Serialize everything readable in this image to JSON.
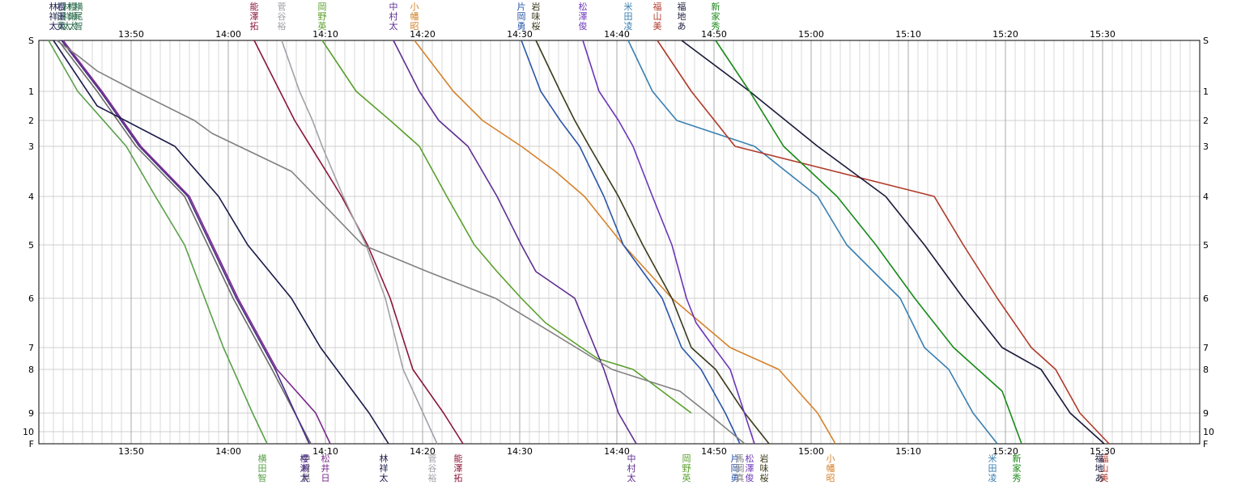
{
  "chart_data": {
    "type": "line",
    "title": "",
    "xlabel": "",
    "ylabel": "",
    "x_unit": "clock time",
    "xlim": [
      "13:40:30",
      "15:40:00"
    ],
    "x_ticks": [
      "13:50",
      "14:00",
      "14:10",
      "14:20",
      "14:30",
      "14:40",
      "14:50",
      "15:00",
      "15:10",
      "15:20",
      "15:30"
    ],
    "y_ticks": [
      "S",
      "1",
      "2",
      "3",
      "4",
      "5",
      "6",
      "7",
      "8",
      "9",
      "10",
      "F"
    ],
    "grid": true,
    "legend": "runner labels along top and bottom edges",
    "series": [
      {
        "name": "能澤拓",
        "color": "#8b1538",
        "label_top": [
          "能",
          "澤",
          "拓"
        ],
        "label_bottom": [
          "能",
          "澤",
          "拓"
        ],
        "x": [
          "14:02:40",
          "14:06:50",
          "14:11:40",
          "14:14:20",
          "14:16:40",
          "14:19:00",
          "14:22:10",
          "14:24:10"
        ],
        "y": [
          "S",
          "2",
          "4",
          "5",
          "6",
          "8",
          "9",
          "F"
        ]
      },
      {
        "name": "菅谷裕",
        "color": "#a0a0a8",
        "label_top": [
          "菅",
          "谷",
          "裕"
        ],
        "label_bottom": [
          "菅",
          "谷",
          "裕"
        ],
        "x": [
          "14:05:30",
          "14:07:20",
          "14:08:40",
          "14:09:40",
          "14:11:50",
          "14:14:10",
          "14:16:10",
          "14:18:00",
          "14:21:30"
        ],
        "y": [
          "S",
          "1",
          "2",
          "3",
          "4",
          "5",
          "6",
          "8",
          "F"
        ]
      },
      {
        "name": "岡野英",
        "color": "#5aa02c",
        "label_top": [
          "岡",
          "野",
          "英"
        ],
        "label_bottom": [
          "岡",
          "野",
          "英"
        ],
        "x": [
          "14:09:40",
          "14:13:10",
          "14:16:40",
          "14:19:40",
          "14:22:30",
          "14:25:20",
          "14:27:40",
          "14:30:10",
          "14:32:40",
          "14:38:00",
          "14:41:40",
          "14:44:40",
          "14:47:40"
        ],
        "y": [
          "S",
          "1",
          "2",
          "3",
          "4",
          "5",
          "5.5",
          "6",
          "6.5",
          "7.5",
          "8",
          "8.5",
          "9"
        ]
      },
      {
        "name": "中村太",
        "color": "#5e2d91",
        "label_top": [
          "中",
          "村",
          "太"
        ],
        "label_bottom": [
          "中",
          "村",
          "太"
        ],
        "x": [
          "14:17:00",
          "14:19:40",
          "14:21:40",
          "14:24:40",
          "14:27:40",
          "14:30:10",
          "14:31:40",
          "14:35:40",
          "14:38:40",
          "14:40:10",
          "14:42:00"
        ],
        "y": [
          "S",
          "1",
          "2",
          "3",
          "4",
          "5",
          "5.5",
          "6",
          "8",
          "9",
          "F"
        ]
      },
      {
        "name": "小幡昭",
        "color": "#d4822c",
        "label_top": [
          "小",
          "幡",
          "昭"
        ],
        "label_bottom": [
          "小",
          "幡",
          "昭"
        ],
        "x": [
          "14:19:10",
          "14:23:10",
          "14:26:10",
          "14:30:10",
          "14:33:40",
          "14:36:40",
          "14:40:40",
          "14:45:40",
          "14:48:40",
          "14:51:40",
          "14:56:40",
          "15:00:40",
          "15:02:30"
        ],
        "y": [
          "S",
          "1",
          "2",
          "3",
          "3.5",
          "4",
          "5",
          "6",
          "6.5",
          "7",
          "8",
          "9",
          "F"
        ]
      },
      {
        "name": "片岡勇",
        "color": "#2a55a8",
        "label_top": [
          "片",
          "岡",
          "勇"
        ],
        "label_bottom": [
          "片",
          "岡",
          "勇"
        ],
        "x": [
          "14:30:10",
          "14:32:10",
          "14:34:10",
          "14:36:10",
          "14:38:40",
          "14:40:40",
          "14:42:40",
          "14:44:40",
          "14:46:40",
          "14:48:40",
          "14:51:10",
          "14:52:40"
        ],
        "y": [
          "S",
          "1",
          "2",
          "3",
          "4",
          "5",
          "5.5",
          "6",
          "7",
          "8",
          "9",
          "F"
        ]
      },
      {
        "name": "岩味桜",
        "color": "#3a3a1a",
        "label_top": [
          "岩",
          "味",
          "桜"
        ],
        "label_bottom": [
          "岩",
          "味",
          "桜"
        ],
        "x": [
          "14:31:40",
          "14:34:10",
          "14:35:40",
          "14:37:10",
          "14:40:10",
          "14:42:40",
          "14:45:40",
          "14:47:40",
          "14:50:10",
          "14:53:10",
          "14:55:40"
        ],
        "y": [
          "S",
          "1",
          "2",
          "3",
          "4",
          "5",
          "6",
          "7",
          "8",
          "9",
          "F"
        ]
      },
      {
        "name": "松澤俊",
        "color": "#6b36b8",
        "label_top": [
          "松",
          "澤",
          "俊"
        ],
        "label_bottom": [
          "松",
          "澤",
          "俊"
        ],
        "x": [
          "14:36:30",
          "14:38:10",
          "14:40:10",
          "14:41:40",
          "14:43:40",
          "14:45:40",
          "14:47:10",
          "14:48:10",
          "14:50:00",
          "14:51:40",
          "14:54:10"
        ],
        "y": [
          "S",
          "1",
          "2",
          "3",
          "4",
          "5",
          "6",
          "6.5",
          "7",
          "8",
          "F"
        ]
      },
      {
        "name": "米田凌",
        "color": "#3a7fb0",
        "label_top": [
          "米",
          "田",
          "凌"
        ],
        "label_bottom": [
          "米",
          "田",
          "凌"
        ],
        "x": [
          "14:41:10",
          "14:43:40",
          "14:46:10",
          "14:50:10",
          "14:54:10",
          "15:00:40",
          "15:03:40",
          "15:09:10",
          "15:11:40",
          "15:14:10",
          "15:16:40",
          "15:19:10"
        ],
        "y": [
          "S",
          "1",
          "2",
          "2.5",
          "3",
          "4",
          "5",
          "6",
          "7",
          "8",
          "9",
          "F"
        ]
      },
      {
        "name": "福山美",
        "color": "#b03a2a",
        "label_top": [
          "福",
          "山",
          "美"
        ],
        "label_bottom": [
          "福",
          "山",
          "美"
        ],
        "x": [
          "14:44:10",
          "14:47:40",
          "14:52:10",
          "15:12:40",
          "15:15:40",
          "15:19:10",
          "15:22:40",
          "15:25:10",
          "15:27:40",
          "15:30:40"
        ],
        "y": [
          "S",
          "1",
          "3",
          "4",
          "5",
          "6",
          "7",
          "8",
          "9",
          "F"
        ]
      },
      {
        "name": "福地あ",
        "color": "#1a1a3a",
        "label_top": [
          "福",
          "地",
          "あ"
        ],
        "label_bottom": [
          "福",
          "地",
          "あ"
        ],
        "x": [
          "14:46:40",
          "14:53:40",
          "15:00:40",
          "15:07:40",
          "15:11:40",
          "15:15:40",
          "15:19:40",
          "15:23:40",
          "15:26:40",
          "15:30:10"
        ],
        "y": [
          "S",
          "1",
          "3",
          "4",
          "5",
          "6",
          "7",
          "8",
          "9",
          "F"
        ]
      },
      {
        "name": "新家秀",
        "color": "#1a8a1a",
        "label_top": [
          "新",
          "家",
          "秀"
        ],
        "label_bottom": [
          "新",
          "家",
          "秀"
        ],
        "x": [
          "14:50:10",
          "14:53:40",
          "14:57:10",
          "15:02:40",
          "15:06:40",
          "15:10:40",
          "15:14:40",
          "15:19:40",
          "15:21:40"
        ],
        "y": [
          "S",
          "1",
          "3",
          "4",
          "5",
          "6",
          "7",
          "8.5",
          "F"
        ]
      },
      {
        "name": "横田智",
        "color": "#5aa04a",
        "label_top": [],
        "label_bottom": [
          "横",
          "田",
          "智"
        ],
        "x": [
          "13:41:30",
          "13:44:30",
          "13:49:30",
          "13:52:30",
          "13:55:30",
          "13:59:30",
          "14:02:30",
          "14:04:00"
        ],
        "y": [
          "S",
          "1",
          "3",
          "4",
          "5",
          "7",
          "9",
          "F"
        ]
      },
      {
        "name": "中村晃",
        "color": "#6a6a6a",
        "label_top": [],
        "label_bottom": [
          "中",
          "村",
          "晃"
        ],
        "x": [
          "13:42:30",
          "13:46:30",
          "13:50:30",
          "13:55:30",
          "14:00:30",
          "14:04:30",
          "14:08:30"
        ],
        "y": [
          "S",
          "1",
          "3",
          "4",
          "6",
          "8",
          "F"
        ]
      },
      {
        "name": "櫻瀬太",
        "color": "#4a2a8a",
        "label_top": [
          "櫻",
          "瀬",
          "太"
        ],
        "label_bottom": [
          "櫻",
          "瀬",
          "太"
        ],
        "x": [
          "13:42:50",
          "13:46:50",
          "13:50:50",
          "13:55:50",
          "14:00:50",
          "14:04:50",
          "14:08:20"
        ],
        "y": [
          "S",
          "1",
          "3",
          "4",
          "6",
          "8",
          "F"
        ]
      },
      {
        "name": "松井日",
        "color": "#7a2a8a",
        "label_top": [],
        "label_bottom": [
          "松",
          "井",
          "日"
        ],
        "x": [
          "13:43:00",
          "13:47:00",
          "13:51:00",
          "13:56:00",
          "14:01:00",
          "14:05:00",
          "14:09:00",
          "14:10:30"
        ],
        "y": [
          "S",
          "1",
          "3",
          "4",
          "6",
          "8",
          "9",
          "F"
        ]
      },
      {
        "name": "林祥太",
        "color": "#1a1a4a",
        "label_top": [
          "林",
          "祥",
          "太"
        ],
        "label_bottom": [
          "林",
          "祥",
          "太"
        ],
        "x": [
          "13:42:00",
          "13:46:30",
          "13:54:30",
          "13:59:00",
          "14:02:00",
          "14:06:30",
          "14:09:30",
          "14:14:30",
          "14:16:30"
        ],
        "y": [
          "S",
          "1.5",
          "3",
          "4",
          "5",
          "6",
          "7",
          "9",
          "F"
        ]
      },
      {
        "name": "馬岡真",
        "color": "#808080",
        "label_top": [],
        "label_bottom": [
          "馬",
          "岡",
          "真"
        ],
        "x": [
          "13:42:20",
          "13:44:30",
          "13:46:30",
          "13:50:30",
          "13:56:30",
          "13:58:20",
          "14:06:30",
          "14:13:50",
          "14:20:30",
          "14:27:30",
          "14:39:30",
          "14:46:30",
          "14:49:20",
          "14:53:10"
        ],
        "y": [
          "S",
          "0.3",
          "0.6",
          "1",
          "2",
          "2.5",
          "3.5",
          "5",
          "5.5",
          "6",
          "8",
          "8.5",
          "9",
          "F"
        ]
      }
    ],
    "top_labels_left": {
      "color": "#2a6a4a",
      "columns": [
        [
          "石",
          "田",
          "英"
        ],
        [
          "林",
          "祥",
          "太"
        ],
        [
          "櫻",
          "瀬",
          "太"
        ],
        [
          "横",
          "尾",
          "智"
        ]
      ]
    }
  }
}
